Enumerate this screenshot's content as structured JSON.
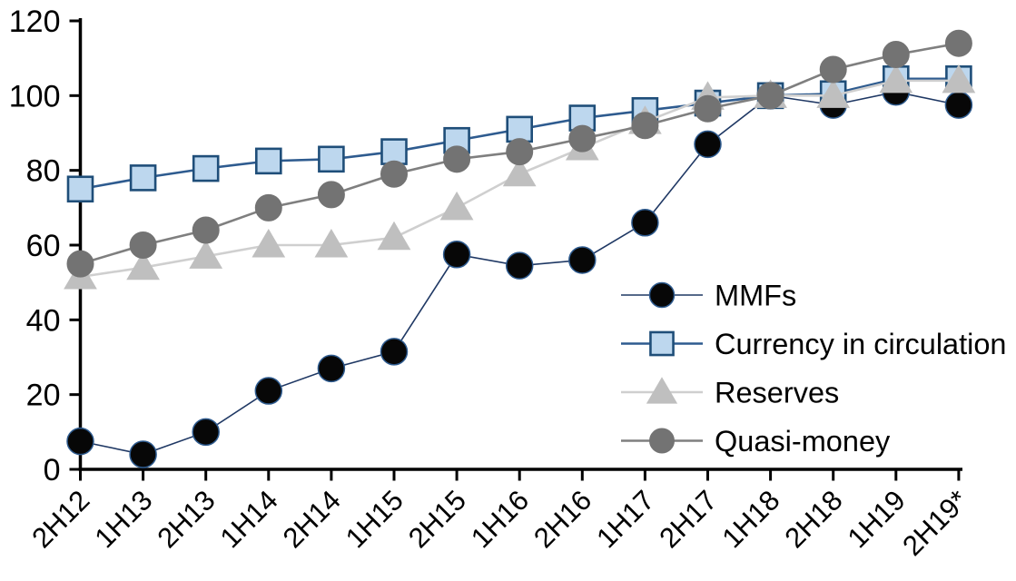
{
  "chart_data": {
    "type": "line",
    "title": "",
    "xlabel": "",
    "ylabel": "",
    "grid": false,
    "legend_position": "center-right",
    "ylim": [
      0,
      120
    ],
    "ytick_step": 20,
    "ytick_labels": [
      "0",
      "20",
      "40",
      "60",
      "80",
      "100",
      "120"
    ],
    "categories": [
      "2H12",
      "1H13",
      "2H13",
      "1H14",
      "2H14",
      "1H15",
      "2H15",
      "1H16",
      "2H16",
      "1H17",
      "2H17",
      "1H18",
      "2H18",
      "1H19",
      "2H19*"
    ],
    "series": [
      {
        "name": "MMFs",
        "marker": "circle",
        "marker_fill": "#070707",
        "marker_stroke": "#2E5B8F",
        "marker_stroke_width": 1.5,
        "line_color": "#1F3864",
        "line_width": 1.6,
        "values": [
          7.5,
          4,
          10,
          21,
          27,
          31.5,
          57.5,
          54.5,
          56,
          66,
          87,
          100,
          97.5,
          101,
          97.5
        ]
      },
      {
        "name": "Currency in circulation",
        "marker": "square",
        "marker_fill": "#BDD7EE",
        "marker_stroke": "#1F4E79",
        "marker_stroke_width": 2.6,
        "line_color": "#2E5B8F",
        "line_width": 2.6,
        "values": [
          75,
          78,
          80.5,
          82.5,
          83,
          85,
          88,
          91,
          94,
          96,
          98,
          100,
          100.5,
          104.5,
          104.5
        ]
      },
      {
        "name": "Reserves",
        "marker": "triangle",
        "marker_fill": "#BFBFBF",
        "marker_stroke": "#BFBFBF",
        "marker_stroke_width": 1,
        "line_color": "#CFCFCF",
        "line_width": 2.6,
        "values": [
          51.5,
          54,
          57,
          60,
          60,
          62,
          70,
          79,
          86,
          93,
          99.5,
          100,
          100,
          104,
          104
        ]
      },
      {
        "name": "Quasi-money",
        "marker": "circle",
        "marker_fill": "#737373",
        "marker_stroke": "#737373",
        "marker_stroke_width": 1,
        "line_color": "#7F7F7F",
        "line_width": 2.6,
        "values": [
          55,
          60,
          64,
          70,
          73.5,
          79,
          83,
          85,
          88.5,
          92,
          96.5,
          100,
          107,
          111,
          114
        ]
      }
    ]
  },
  "legend": {
    "items": [
      "MMFs",
      "Currency in circulation",
      "Reserves",
      "Quasi-money"
    ]
  },
  "colors": {
    "axis": "#000000",
    "text": "#000000",
    "background": "#FFFFFF"
  }
}
